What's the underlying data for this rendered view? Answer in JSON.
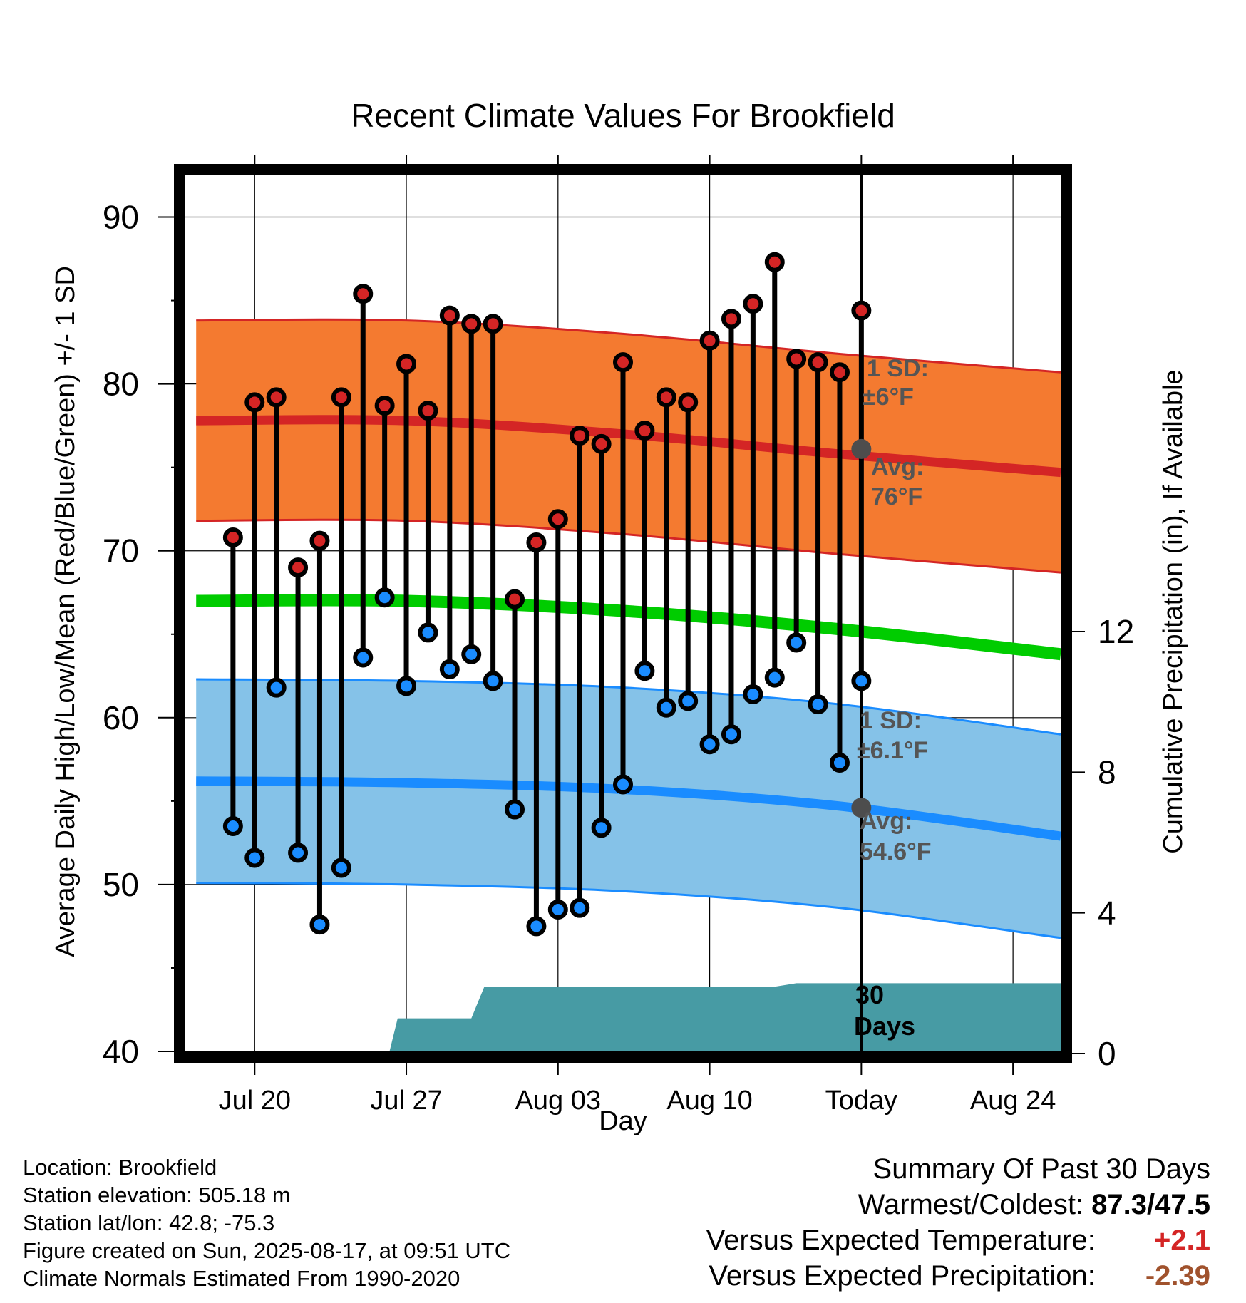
{
  "chart_data": {
    "type": "candlestick-range",
    "title": "Recent Climate Values For Brookfield",
    "xlabel": "Day",
    "ylabel": "Average Daily High/Low/Mean (Red/Blue/Green) +/- 1 SD",
    "y2label": "Cumulative Precipitation (in), If Available",
    "ylim": [
      40,
      92.5
    ],
    "y2lim": [
      0,
      30
    ],
    "yticks": [
      40,
      50,
      60,
      70,
      80,
      90
    ],
    "y2ticks": [
      0,
      4,
      8,
      12
    ],
    "x_tick_labels": [
      {
        "day": 20,
        "label": "Jul 20"
      },
      {
        "day": 27,
        "label": "Jul 27"
      },
      {
        "day": 34,
        "label": "Aug 03"
      },
      {
        "day": 41,
        "label": "Aug 10"
      },
      {
        "day": 48,
        "label": "Today"
      },
      {
        "day": 55,
        "label": "Aug 24"
      }
    ],
    "xlim": [
      16.8,
      57.2
    ],
    "today_day": 48,
    "days": [
      19,
      20,
      21,
      22,
      23,
      24,
      25,
      26,
      27,
      28,
      29,
      30,
      31,
      32,
      33,
      34,
      35,
      36,
      37,
      38,
      39,
      40,
      41,
      42,
      43,
      44,
      45,
      46,
      47,
      48
    ],
    "highs": [
      70.8,
      78.9,
      79.2,
      69.0,
      70.6,
      79.2,
      85.4,
      78.7,
      81.2,
      78.4,
      84.1,
      83.6,
      83.6,
      67.1,
      70.5,
      71.9,
      76.9,
      76.4,
      81.3,
      77.2,
      79.2,
      78.9,
      82.6,
      83.9,
      84.8,
      87.3,
      81.5,
      81.3,
      80.7,
      84.4
    ],
    "lows": [
      53.5,
      51.6,
      61.8,
      51.9,
      47.6,
      51.0,
      63.6,
      67.2,
      61.9,
      65.1,
      62.9,
      63.8,
      62.2,
      54.5,
      47.5,
      48.5,
      48.6,
      53.4,
      56.0,
      62.8,
      60.6,
      61.0,
      58.4,
      59.0,
      61.4,
      62.4,
      64.5,
      60.8,
      57.3,
      62.2
    ],
    "normal_high": {
      "avg": [
        77.8,
        77.8,
        77.0,
        75.8,
        74.7
      ],
      "sd": 6,
      "days": [
        17.3,
        27,
        37,
        47,
        57.2
      ],
      "avg_label": "Avg:",
      "avg_value": "76°F",
      "sd_label": "1 SD:",
      "sd_value": "±6°F"
    },
    "normal_low": {
      "avg": [
        56.2,
        56.1,
        55.7,
        54.7,
        52.9
      ],
      "sd": 6.1,
      "days": [
        17.3,
        27,
        37,
        47,
        57.2
      ],
      "avg_label": "Avg:",
      "avg_value": "54.6°F",
      "sd_label": "1 SD:",
      "sd_value": "±6.1°F"
    },
    "normal_mean": {
      "avg": [
        67.0,
        67.0,
        66.4,
        65.3,
        63.8
      ],
      "days": [
        17.3,
        27,
        37,
        47,
        57.2
      ]
    },
    "precip": {
      "days": [
        22.5,
        23.5,
        24.0,
        25.5,
        26.2,
        26.6,
        29.0,
        30.0,
        30.6,
        31.0,
        33.0,
        38.0,
        44.0,
        45.0,
        47.0,
        57.2
      ],
      "values": [
        0,
        0,
        0,
        0,
        0,
        1.0,
        1.0,
        1.0,
        1.9,
        1.9,
        1.9,
        1.9,
        1.9,
        2.0,
        2.0,
        2.0
      ]
    },
    "precip_total_label": [
      "30",
      "Days"
    ],
    "colors": {
      "high_band": "#f47a30",
      "high_band_edge": "#d42525",
      "high_avg": "#d42525",
      "low_band": "#85c2e8",
      "low_band_edge": "#1a8cff",
      "low_avg": "#1a8cff",
      "mean": "#00cc00",
      "precip": "#479ba4",
      "high_dot": "#d42525",
      "low_dot": "#1a8cff",
      "annotation": "#555555",
      "today_dot": "#4d4d4d"
    }
  },
  "info": {
    "location": "Location: Brookfield",
    "elevation": "Station elevation: 505.18 m",
    "latlon": "Station lat/lon: 42.8; -75.3",
    "created": "Figure created on Sun, 2025-08-17, at 09:51 UTC",
    "normals": "Climate Normals Estimated From 1990-2020"
  },
  "summary": {
    "title": "Summary Of Past 30 Days",
    "warmest_label": "Warmest/Coldest:",
    "warmest_value": "87.3/47.5",
    "temp_label": "Versus Expected Temperature:",
    "temp_value": "+2.1",
    "temp_color": "#d42525",
    "precip_label": "Versus Expected Precipitation:",
    "precip_value": "-2.39",
    "precip_color": "#a0522d"
  }
}
